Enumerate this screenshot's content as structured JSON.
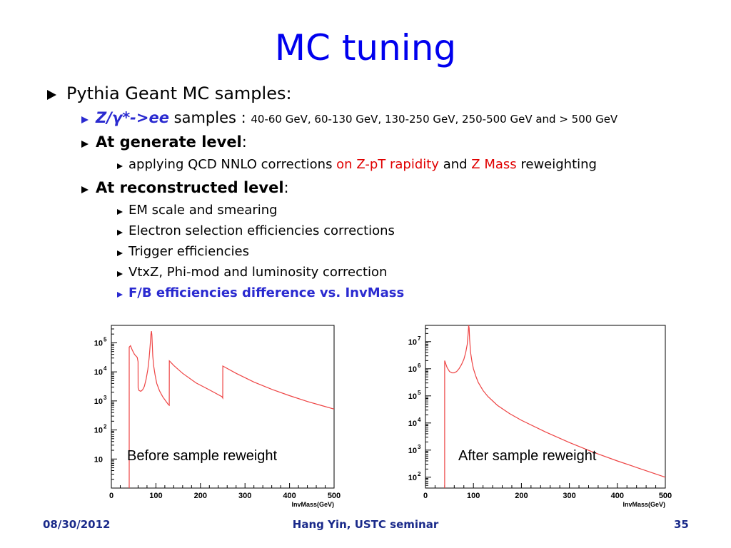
{
  "slide": {
    "title": "MC tuning",
    "bullets": {
      "b1": "Pythia Geant MC samples:",
      "b2_emph": "Z/γ*->ee",
      "b2_text": " samples : ",
      "b2_small": "40-60 GeV, 60-130 GeV, 130-250 GeV, 250-500 GeV and > 500 GeV",
      "b3_bold": "At generate level",
      "b3_colon": ":",
      "b4_a": "applying QCD NNLO corrections ",
      "b4_red1": "on Z-pT rapidity",
      "b4_b": " and ",
      "b4_red2": "Z Mass",
      "b4_c": " reweighting",
      "b5_bold": "At reconstructed level",
      "b5_colon": ":",
      "b6": "EM  scale and smearing",
      "b7": "Electron selection efficiencies corrections",
      "b8": "Trigger efficiencies",
      "b9": "VtxZ, Phi-mod and luminosity correction",
      "b10": "F/B efficiencies difference vs. InvMass"
    },
    "footer": {
      "date": "08/30/2012",
      "author": "Hang Yin, USTC seminar",
      "page": "35"
    },
    "colors": {
      "title": "#0000ee",
      "highlight": "#e00000",
      "bluebullet": "#2a2ad0",
      "footer": "#1a2a8a",
      "histline": "#ee4444"
    }
  },
  "chart_data": [
    {
      "type": "line",
      "annotation": "Before sample reweight",
      "xlabel": "InvMass(GeV)",
      "ylabel": "",
      "scale_y": "log",
      "xlim": [
        0,
        500
      ],
      "ylim_exponent": [
        0,
        5.6
      ],
      "x_ticks": [
        "0",
        "100",
        "200",
        "300",
        "400",
        "500"
      ],
      "y_ticks": [
        {
          "base": "10",
          "exp": ""
        },
        {
          "base": "10",
          "exp": "2"
        },
        {
          "base": "10",
          "exp": "3"
        },
        {
          "base": "10",
          "exp": "4"
        },
        {
          "base": "10",
          "exp": "5"
        }
      ],
      "series": [
        {
          "x": [
            40,
            40.1,
            43,
            47,
            52,
            58,
            60,
            60.1,
            62,
            66,
            70,
            74,
            78,
            82,
            85,
            87,
            89,
            90,
            91,
            92,
            93,
            95,
            98,
            102,
            108,
            115,
            122,
            128,
            130,
            130.1,
            132,
            140,
            160,
            190,
            220,
            248,
            250,
            250.1,
            255,
            280,
            320,
            360,
            400,
            440,
            470,
            500
          ],
          "y": [
            0,
            4.85,
            4.9,
            4.75,
            4.6,
            4.5,
            4.35,
            3.45,
            3.36,
            3.33,
            3.38,
            3.5,
            3.75,
            4.1,
            4.5,
            4.9,
            5.3,
            5.4,
            5.25,
            4.9,
            4.55,
            4.2,
            3.9,
            3.6,
            3.35,
            3.15,
            3.0,
            2.87,
            2.85,
            4.38,
            4.35,
            4.22,
            3.95,
            3.62,
            3.38,
            3.15,
            3.1,
            4.2,
            4.16,
            3.95,
            3.65,
            3.4,
            3.18,
            2.98,
            2.85,
            2.72
          ]
        }
      ]
    },
    {
      "type": "line",
      "annotation": "After sample reweight",
      "xlabel": "InvMass(GeV)",
      "ylabel": "",
      "scale_y": "log",
      "xlim": [
        0,
        500
      ],
      "ylim_exponent": [
        1.6,
        7.6
      ],
      "x_ticks": [
        "0",
        "100",
        "200",
        "300",
        "400",
        "500"
      ],
      "y_ticks": [
        {
          "base": "10",
          "exp": "2"
        },
        {
          "base": "10",
          "exp": "3"
        },
        {
          "base": "10",
          "exp": "4"
        },
        {
          "base": "10",
          "exp": "5"
        },
        {
          "base": "10",
          "exp": "6"
        },
        {
          "base": "10",
          "exp": "7"
        }
      ],
      "series": [
        {
          "x": [
            40,
            40.1,
            42,
            45,
            50,
            55,
            60,
            65,
            70,
            75,
            80,
            84,
            87,
            89,
            90,
            91,
            92,
            94,
            97,
            100,
            105,
            110,
            120,
            130,
            150,
            175,
            200,
            250,
            300,
            350,
            400,
            450,
            500
          ],
          "y": [
            1.6,
            6.3,
            6.2,
            6.05,
            5.9,
            5.85,
            5.85,
            5.9,
            6.0,
            6.15,
            6.35,
            6.6,
            6.9,
            7.3,
            7.6,
            7.5,
            7.1,
            6.6,
            6.25,
            6.0,
            5.72,
            5.5,
            5.2,
            4.98,
            4.65,
            4.35,
            4.1,
            3.67,
            3.28,
            2.92,
            2.6,
            2.3,
            2.0
          ]
        }
      ]
    }
  ]
}
